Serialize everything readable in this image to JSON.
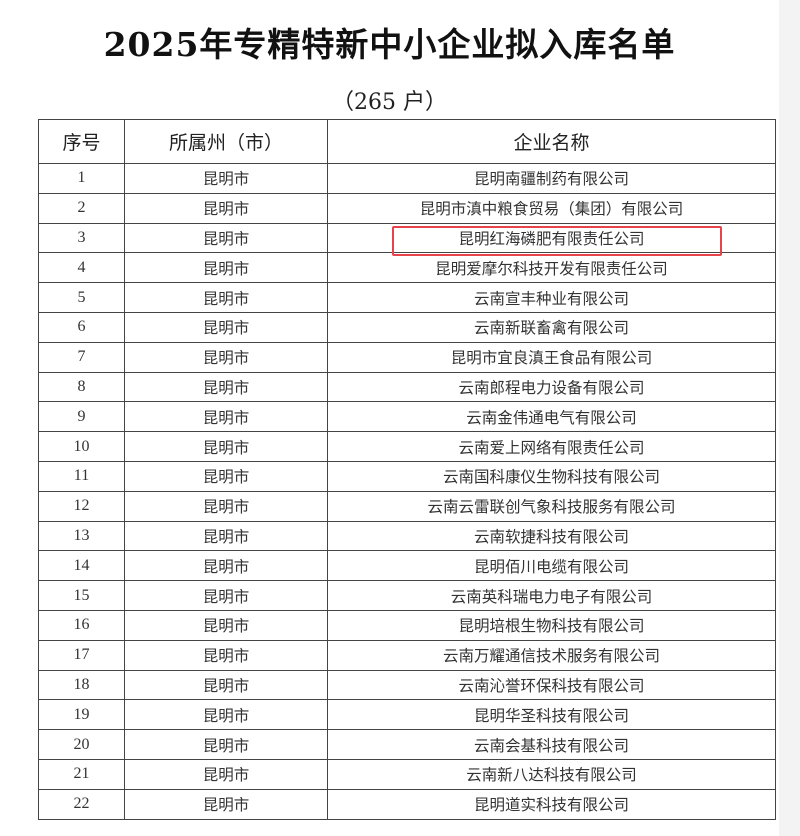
{
  "title": "2025年专精特新中小企业拟入库名单",
  "subtitle": "（265 户）",
  "table": {
    "headers": [
      "序号",
      "所属州（市）",
      "企业名称"
    ],
    "rows": [
      [
        "1",
        "昆明市",
        "昆明南疆制药有限公司"
      ],
      [
        "2",
        "昆明市",
        "昆明市滇中粮食贸易（集团）有限公司"
      ],
      [
        "3",
        "昆明市",
        "昆明红海磷肥有限责任公司"
      ],
      [
        "4",
        "昆明市",
        "昆明爱摩尔科技开发有限责任公司"
      ],
      [
        "5",
        "昆明市",
        "云南宣丰种业有限公司"
      ],
      [
        "6",
        "昆明市",
        "云南新联畜禽有限公司"
      ],
      [
        "7",
        "昆明市",
        "昆明市宜良滇王食品有限公司"
      ],
      [
        "8",
        "昆明市",
        "云南郎程电力设备有限公司"
      ],
      [
        "9",
        "昆明市",
        "云南金伟通电气有限公司"
      ],
      [
        "10",
        "昆明市",
        "云南爱上网络有限责任公司"
      ],
      [
        "11",
        "昆明市",
        "云南国科康仪生物科技有限公司"
      ],
      [
        "12",
        "昆明市",
        "云南云雷联创气象科技服务有限公司"
      ],
      [
        "13",
        "昆明市",
        "云南软捷科技有限公司"
      ],
      [
        "14",
        "昆明市",
        "昆明佰川电缆有限公司"
      ],
      [
        "15",
        "昆明市",
        "云南英科瑞电力电子有限公司"
      ],
      [
        "16",
        "昆明市",
        "昆明培根生物科技有限公司"
      ],
      [
        "17",
        "昆明市",
        "云南万耀通信技术服务有限公司"
      ],
      [
        "18",
        "昆明市",
        "云南沁誉环保科技有限公司"
      ],
      [
        "19",
        "昆明市",
        "昆明华圣科技有限公司"
      ],
      [
        "20",
        "昆明市",
        "云南会基科技有限公司"
      ],
      [
        "21",
        "昆明市",
        "云南新八达科技有限公司"
      ],
      [
        "22",
        "昆明市",
        "昆明道实科技有限公司"
      ]
    ]
  },
  "highlight_color": "#e6434b",
  "highlighted_row": "3"
}
